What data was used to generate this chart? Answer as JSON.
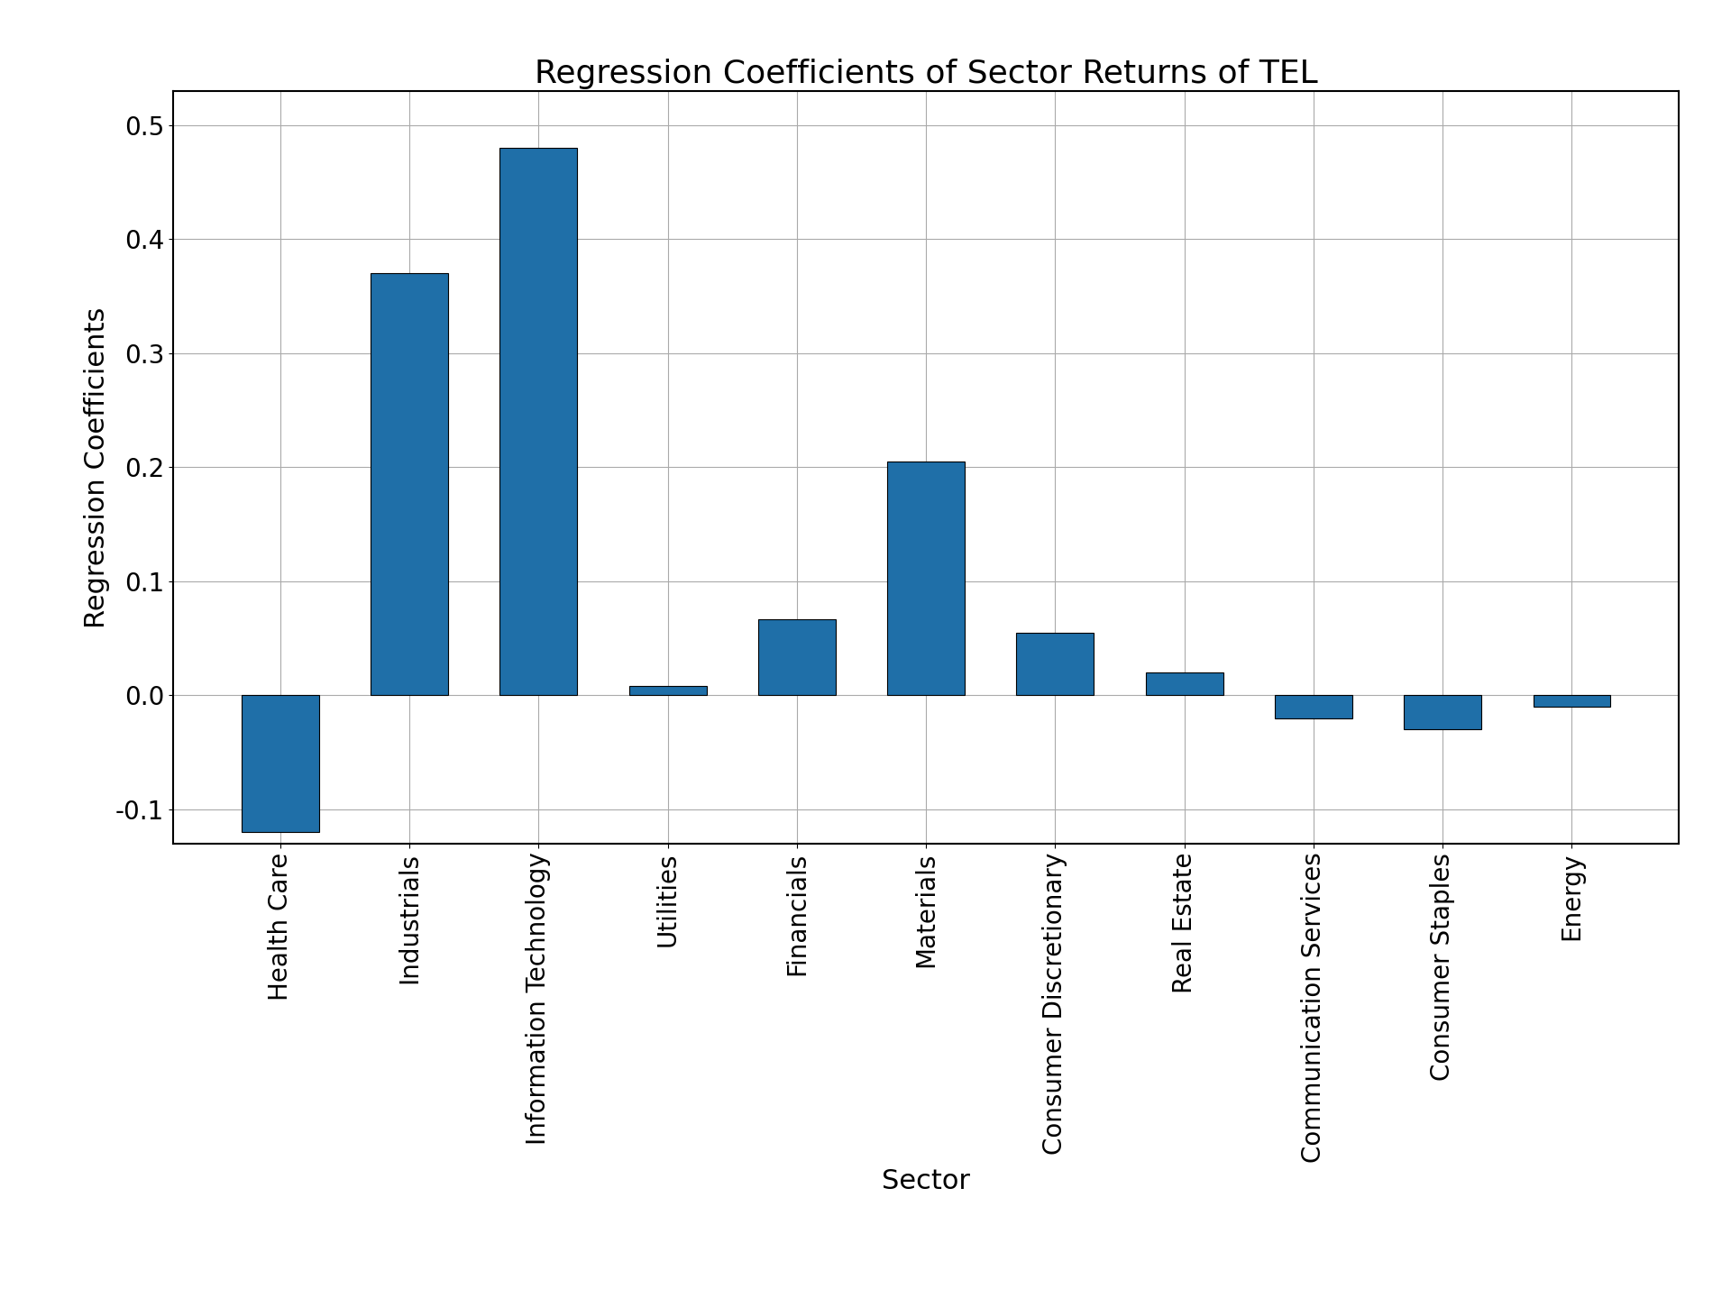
{
  "categories": [
    "Health Care",
    "Industrials",
    "Information Technology",
    "Utilities",
    "Financials",
    "Materials",
    "Consumer Discretionary",
    "Real Estate",
    "Communication Services",
    "Consumer Staples",
    "Energy"
  ],
  "values": [
    -0.12,
    0.37,
    0.48,
    0.008,
    0.067,
    0.205,
    0.055,
    0.02,
    -0.02,
    -0.03,
    -0.01
  ],
  "bar_color": "#1f6fa8",
  "title": "Regression Coefficients of Sector Returns of TEL",
  "xlabel": "Sector",
  "ylabel": "Regression Coefficients",
  "ylim": [
    -0.13,
    0.53
  ],
  "yticks": [
    -0.1,
    0.0,
    0.1,
    0.2,
    0.3,
    0.4,
    0.5
  ],
  "title_fontsize": 26,
  "label_fontsize": 22,
  "tick_fontsize": 20,
  "background_color": "#ffffff",
  "grid_color": "#aaaaaa"
}
